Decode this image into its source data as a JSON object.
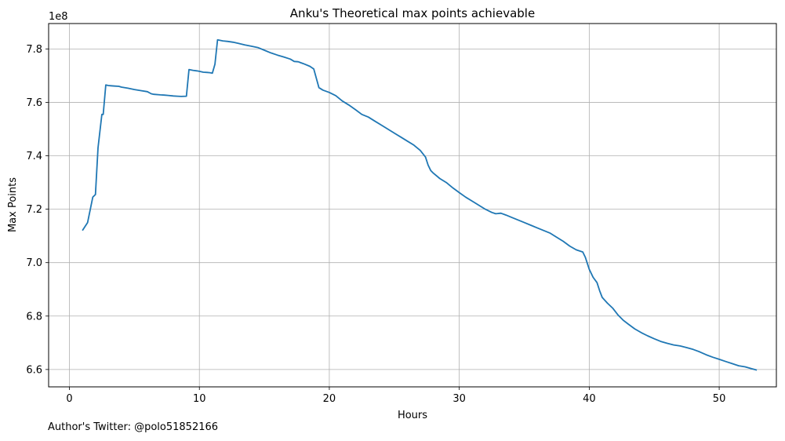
{
  "chart_data": {
    "type": "line",
    "title": "Anku's Theoretical max points achievable",
    "xlabel": "Hours",
    "ylabel": "Max Points",
    "y_offset_text": "1e8",
    "xlim": [
      -1.6,
      54.4
    ],
    "ylim": [
      6.535,
      7.895
    ],
    "xticks": [
      0,
      10,
      20,
      30,
      40,
      50
    ],
    "yticks": [
      6.6,
      6.8,
      7.0,
      7.2,
      7.4,
      7.6,
      7.8
    ],
    "xtick_labels": [
      "0",
      "10",
      "20",
      "30",
      "40",
      "50"
    ],
    "ytick_labels": [
      "6.6",
      "6.8",
      "7.0",
      "7.2",
      "7.4",
      "7.6",
      "7.8"
    ],
    "grid": true,
    "line_color": "#1f77b4",
    "series": [
      {
        "x": [
          1.0,
          1.4,
          1.8,
          2.0,
          2.2,
          2.5,
          2.6,
          2.8,
          3.0,
          3.2,
          3.5,
          3.8,
          4.0,
          4.5,
          5.0,
          5.5,
          6.0,
          6.3,
          6.5,
          7.0,
          7.3,
          7.6,
          8.0,
          8.3,
          8.6,
          9.0,
          9.2,
          9.5,
          9.8,
          10.0,
          10.3,
          10.6,
          10.8,
          11.0,
          11.2,
          11.4,
          11.8,
          12.2,
          12.6,
          13.0,
          13.5,
          14.0,
          14.5,
          15.0,
          15.5,
          16.0,
          16.5,
          17.0,
          17.3,
          17.6,
          18.0,
          18.5,
          18.8,
          19.2,
          19.5,
          20.0,
          20.5,
          21.0,
          21.5,
          22.0,
          22.5,
          23.0,
          23.5,
          24.0,
          24.5,
          25.0,
          25.5,
          26.0,
          26.5,
          27.0,
          27.4,
          27.6,
          27.8,
          28.0,
          28.5,
          29.0,
          29.5,
          30.0,
          30.5,
          31.0,
          31.5,
          32.0,
          32.5,
          32.8,
          33.2,
          33.6,
          34.0,
          34.5,
          35.0,
          35.5,
          36.0,
          36.5,
          37.0,
          37.5,
          38.0,
          38.5,
          39.0,
          39.5,
          39.7,
          40.0,
          40.3,
          40.6,
          40.8,
          41.0,
          41.4,
          41.8,
          42.2,
          42.6,
          43.0,
          43.5,
          44.0,
          44.5,
          45.0,
          45.5,
          46.0,
          46.5,
          47.0,
          47.5,
          48.0,
          48.5,
          49.0,
          49.5,
          50.0,
          50.5,
          51.0,
          51.5,
          52.0,
          52.5,
          52.9
        ],
        "y": [
          7.12,
          7.15,
          7.245,
          7.255,
          7.43,
          7.555,
          7.555,
          7.665,
          7.663,
          7.662,
          7.661,
          7.66,
          7.657,
          7.653,
          7.648,
          7.644,
          7.64,
          7.632,
          7.63,
          7.628,
          7.627,
          7.626,
          7.624,
          7.623,
          7.622,
          7.623,
          7.723,
          7.72,
          7.718,
          7.716,
          7.713,
          7.712,
          7.711,
          7.709,
          7.743,
          7.834,
          7.83,
          7.828,
          7.825,
          7.821,
          7.815,
          7.81,
          7.805,
          7.795,
          7.785,
          7.777,
          7.77,
          7.762,
          7.753,
          7.752,
          7.745,
          7.735,
          7.725,
          7.655,
          7.646,
          7.637,
          7.625,
          7.605,
          7.59,
          7.573,
          7.555,
          7.545,
          7.53,
          7.515,
          7.5,
          7.485,
          7.47,
          7.455,
          7.44,
          7.42,
          7.395,
          7.365,
          7.345,
          7.335,
          7.315,
          7.3,
          7.28,
          7.262,
          7.245,
          7.23,
          7.215,
          7.2,
          7.188,
          7.183,
          7.185,
          7.178,
          7.17,
          7.16,
          7.15,
          7.14,
          7.13,
          7.12,
          7.11,
          7.095,
          7.08,
          7.062,
          7.048,
          7.04,
          7.02,
          6.975,
          6.945,
          6.925,
          6.895,
          6.87,
          6.848,
          6.83,
          6.805,
          6.785,
          6.77,
          6.752,
          6.738,
          6.726,
          6.715,
          6.705,
          6.698,
          6.692,
          6.688,
          6.682,
          6.675,
          6.666,
          6.655,
          6.646,
          6.638,
          6.63,
          6.622,
          6.614,
          6.61,
          6.603,
          6.598
        ]
      }
    ]
  },
  "caption": "Author's Twitter: @polo51852166"
}
